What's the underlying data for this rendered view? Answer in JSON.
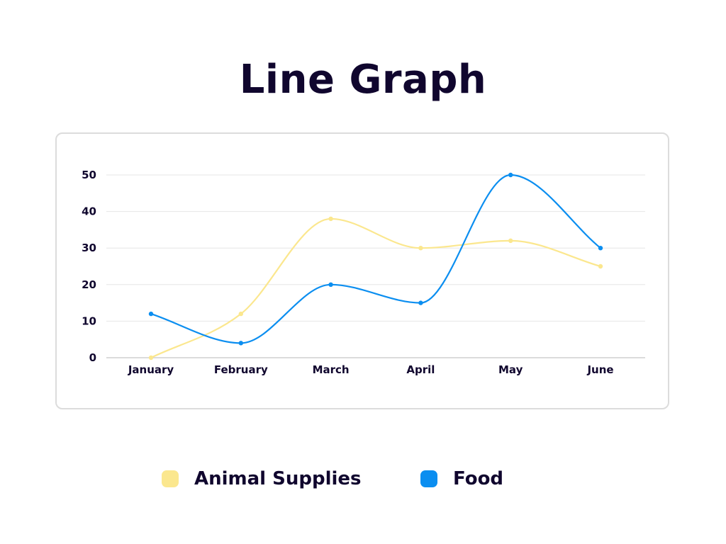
{
  "chart_data": {
    "type": "line",
    "title": "Line Graph",
    "categories": [
      "January",
      "February",
      "March",
      "April",
      "May",
      "June"
    ],
    "series": [
      {
        "name": "Animal Supplies",
        "color": "#fbe78e",
        "values": [
          0,
          12,
          38,
          30,
          32,
          25
        ]
      },
      {
        "name": "Food",
        "color": "#0b8ef0",
        "values": [
          12,
          4,
          20,
          15,
          50,
          30
        ]
      }
    ],
    "y_ticks": [
      "0",
      "10",
      "20",
      "30",
      "40",
      "50"
    ],
    "ylim": [
      0,
      50
    ],
    "grid": true,
    "curve": "smooth",
    "legend_position": "bottom"
  }
}
